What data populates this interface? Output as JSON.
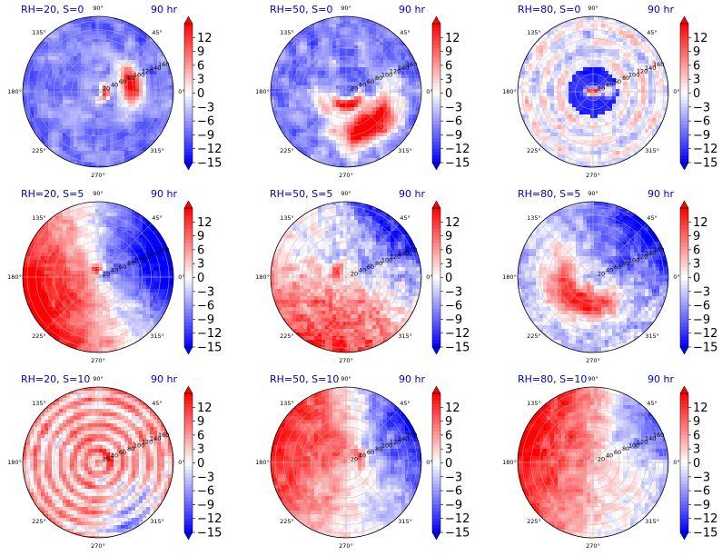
{
  "chart_data": {
    "type": "heatmap",
    "layout": "3x3 grid of polar plots with colorbars",
    "colormap": "bwr",
    "color_range": [
      -15,
      15
    ],
    "colorbar_ticks": [
      "12",
      "9",
      "6",
      "3",
      "0",
      "−3",
      "−6",
      "−9",
      "−12",
      "−15"
    ],
    "colorbar_tick_values": [
      12,
      9,
      6,
      3,
      0,
      -3,
      -6,
      -9,
      -12,
      -15
    ],
    "angle_labels": [
      "0°",
      "45°",
      "90°",
      "135°",
      "180°",
      "225°",
      "270°",
      "315°"
    ],
    "angle_values": [
      0,
      45,
      90,
      135,
      180,
      225,
      270,
      315
    ],
    "radial_labels": [
      "20",
      "40",
      "60",
      "80",
      "100",
      "120",
      "140",
      "160"
    ],
    "radial_values": [
      20,
      40,
      60,
      80,
      100,
      120,
      140,
      160
    ],
    "radial_label_angle_deg": 22.5,
    "grid": true,
    "panels": [
      {
        "title": "RH=20, S=0",
        "time": "90 hr",
        "pattern": "rh20s0"
      },
      {
        "title": "RH=50, S=0",
        "time": "90 hr",
        "pattern": "rh50s0"
      },
      {
        "title": "RH=80, S=0",
        "time": "90 hr",
        "pattern": "rh80s0"
      },
      {
        "title": "RH=20, S=5",
        "time": "90 hr",
        "pattern": "rh20s5"
      },
      {
        "title": "RH=50, S=5",
        "time": "90 hr",
        "pattern": "rh50s5"
      },
      {
        "title": "RH=80, S=5",
        "time": "90 hr",
        "pattern": "rh80s5"
      },
      {
        "title": "RH=20, S=10",
        "time": "90 hr",
        "pattern": "rh20s10"
      },
      {
        "title": "RH=50, S=10",
        "time": "90 hr",
        "pattern": "rh50s10"
      },
      {
        "title": "RH=80, S=10",
        "time": "90 hr",
        "pattern": "rh80s10"
      }
    ]
  }
}
